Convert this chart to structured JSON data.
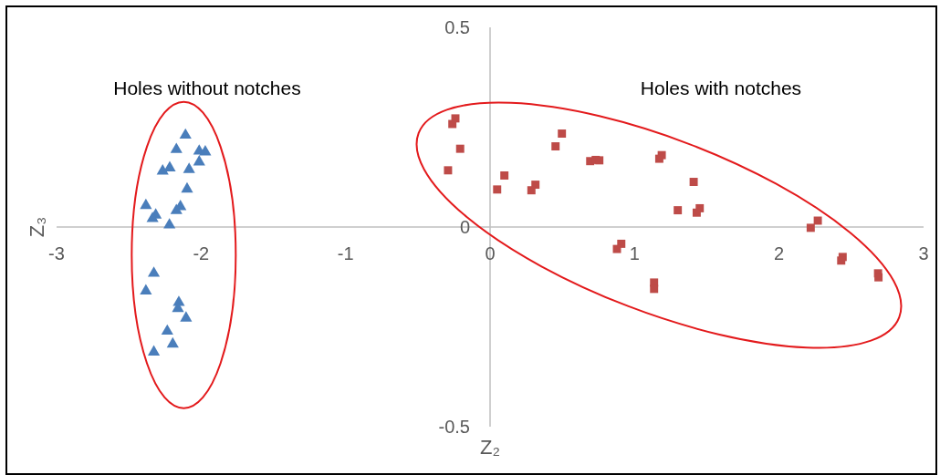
{
  "chart_data": {
    "type": "scatter",
    "xlabel": "Z₂",
    "ylabel": "Z₃",
    "xlim": [
      -3,
      3
    ],
    "ylim": [
      -0.5,
      0.5
    ],
    "xticks": [
      -3,
      -2,
      -1,
      0,
      1,
      2,
      3
    ],
    "yticks": [
      -0.5,
      0,
      0.5
    ],
    "grid": false,
    "annotations": [
      "Holes without notches",
      "Holes with notches"
    ],
    "series": [
      {
        "color": "#4a7ebb",
        "marker": "triangle",
        "x": [
          -2.108,
          -2.171,
          -2.013,
          -1.971,
          -2.013,
          -2.266,
          -2.217,
          -2.083,
          -2.097,
          -2.382,
          -2.314,
          -2.336,
          -2.143,
          -2.171,
          -2.219,
          -2.327,
          -2.382,
          -2.154,
          -2.16,
          -2.104,
          -2.234,
          -2.196,
          -2.327
        ],
        "values": [
          0.23,
          0.194,
          0.19,
          0.188,
          0.163,
          0.14,
          0.148,
          0.144,
          0.095,
          0.054,
          0.03,
          0.021,
          0.051,
          0.041,
          0.005,
          -0.116,
          -0.16,
          -0.189,
          -0.204,
          -0.228,
          -0.261,
          -0.293,
          -0.313
        ]
      },
      {
        "color": "#be4b48",
        "marker": "square",
        "x": [
          -0.24,
          -0.261,
          -0.207,
          -0.291,
          0.099,
          0.049,
          0.314,
          0.286,
          0.497,
          0.453,
          0.693,
          0.731,
          0.756,
          1.188,
          1.171,
          1.409,
          1.299,
          1.451,
          1.43,
          0.908,
          0.878,
          1.135,
          1.135,
          2.268,
          2.219,
          2.44,
          2.43,
          2.685,
          2.688
        ],
        "values": [
          0.272,
          0.258,
          0.196,
          0.142,
          0.129,
          0.094,
          0.106,
          0.092,
          0.234,
          0.202,
          0.165,
          0.168,
          0.167,
          0.18,
          0.171,
          0.113,
          0.042,
          0.047,
          0.036,
          -0.042,
          -0.055,
          -0.139,
          -0.155,
          0.016,
          -0.002,
          -0.075,
          -0.084,
          -0.116,
          -0.126
        ]
      }
    ]
  }
}
